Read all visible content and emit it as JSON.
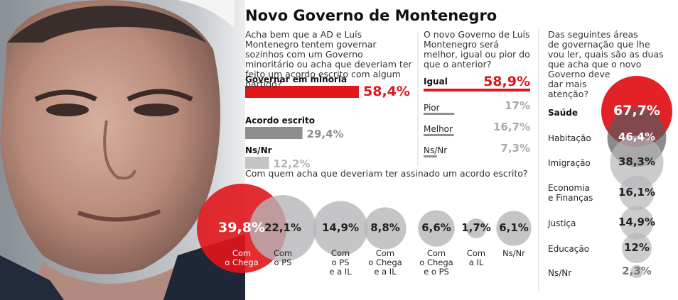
{
  "title": "Novo Governo de Montenegro",
  "colors": {
    "red": "#e0161b",
    "gray": "#8e8e8e",
    "lightgray": "#c4c4c4",
    "circlegray": "#b7b7b9"
  },
  "chart_data": [
    {
      "type": "bar",
      "title": "Acha bem que a AD e Luís Montenegro tentem governar sozinhos com um Governo minoritário ou acha que deveriam ter feito um acordo escrito com algum partido?",
      "categories": [
        "Governar em minoria",
        "Acordo escrito",
        "Ns/Nr"
      ],
      "values": [
        58.4,
        29.4,
        12.2
      ],
      "value_labels": [
        "58,4%",
        "29,4%",
        "12,2%"
      ]
    },
    {
      "type": "bar",
      "title": "O novo Governo de Luís Montenegro será melhor, igual ou pior do que o anterior?",
      "categories": [
        "Igual",
        "Pior",
        "Melhor",
        "Ns/Nr"
      ],
      "values": [
        58.9,
        17,
        16.7,
        7.3
      ],
      "value_labels": [
        "58,9%",
        "17%",
        "16,7%",
        "7,3%"
      ]
    },
    {
      "type": "bubble",
      "title": "Com quem acha que deveriam ter assinado um acordo escrito?",
      "categories": [
        "Com o Chega",
        "Com o PS",
        "Com o PS e a IL",
        "Com o Chega e a IL",
        "Com o Chega e o PS",
        "Com a IL",
        "Ns/Nr"
      ],
      "category_lines": [
        [
          "Com",
          "o Chega"
        ],
        [
          "Com",
          "o PS"
        ],
        [
          "Com",
          "o PS",
          "e a IL"
        ],
        [
          "Com",
          "o Chega",
          "e a IL"
        ],
        [
          "Com",
          "o Chega",
          "e o PS"
        ],
        [
          "Com",
          "a IL"
        ],
        [
          "Ns/Nr"
        ]
      ],
      "values": [
        39.8,
        22.1,
        14.9,
        8.8,
        6.6,
        1.7,
        6.1
      ],
      "value_labels": [
        "39,8%",
        "22,1%",
        "14,9%",
        "8,8%",
        "6,6%",
        "1,7%",
        "6,1%"
      ]
    },
    {
      "type": "bubble",
      "title": "Das seguintes áreas de governação que lhe vou ler, quais são as duas que acha que o novo Governo deve dar mais atenção?",
      "title_lines": [
        "Das seguintes áreas",
        "de governação que lhe",
        "vou ler, quais são as duas",
        "que acha que o novo",
        "Governo deve",
        "dar mais",
        "atenção?"
      ],
      "categories": [
        "Saúde",
        "Habitação",
        "Imigração",
        "Economia e Finanças",
        "Justiça",
        "Educação",
        "Ns/Nr"
      ],
      "category_lines": [
        [
          "Saúde"
        ],
        [
          "Habitação"
        ],
        [
          "Imigração"
        ],
        [
          "Economia",
          "e Finanças"
        ],
        [
          "Justiça"
        ],
        [
          "Educação"
        ],
        [
          "Ns/Nr"
        ]
      ],
      "values": [
        67.7,
        46.4,
        38.3,
        16.1,
        14.9,
        12,
        2.3
      ],
      "value_labels": [
        "67,7%",
        "46,4%",
        "38,3%",
        "16,1%",
        "14,9%",
        "12%",
        "2,3%"
      ]
    }
  ]
}
